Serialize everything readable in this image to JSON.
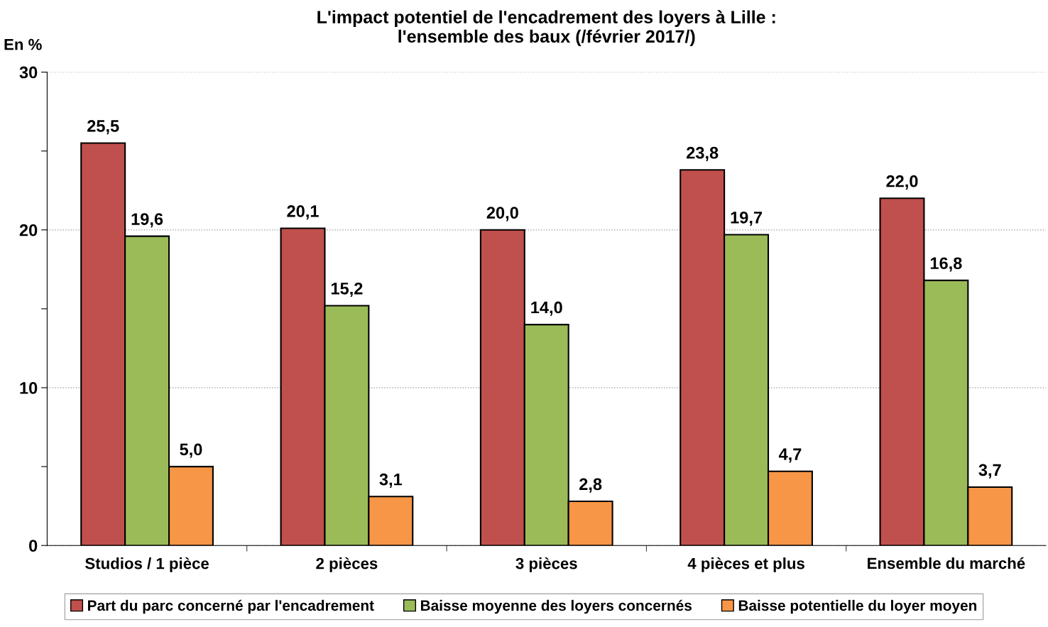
{
  "chart_data": {
    "type": "bar",
    "title": "L'impact potentiel de l'encadrement des loyers à Lille :\nl'ensemble des baux (/février 2017/)",
    "ylabel": "En %",
    "categories": [
      "Studios / 1 pièce",
      "2 pièces",
      "3 pièces",
      "4 pièces et plus",
      "Ensemble du marché"
    ],
    "series": [
      {
        "name": "Part du parc concerné par l'encadrement",
        "color": "#c0504d",
        "values": [
          25.5,
          20.1,
          20.0,
          23.8,
          22.0
        ],
        "value_labels": [
          "25,5",
          "20,1",
          "20,0",
          "23,8",
          "22,0"
        ]
      },
      {
        "name": "Baisse moyenne des loyers concernés",
        "color": "#9bbb59",
        "values": [
          19.6,
          15.2,
          14.0,
          19.7,
          16.8
        ],
        "value_labels": [
          "19,6",
          "15,2",
          "14,0",
          "19,7",
          "16,8"
        ]
      },
      {
        "name": "Baisse potentielle du loyer moyen",
        "color": "#f79646",
        "values": [
          5.0,
          3.1,
          2.8,
          4.7,
          3.7
        ],
        "value_labels": [
          "5,0",
          "3,1",
          "2,8",
          "4,7",
          "3,7"
        ]
      }
    ],
    "ylim": [
      0,
      30
    ],
    "yticks": [
      0,
      {
        "value": 5,
        "label": null
      },
      10,
      {
        "value": 15,
        "label": null
      },
      20,
      {
        "value": 25,
        "label": null
      },
      30
    ],
    "grid": "y",
    "legend": "bottom"
  }
}
